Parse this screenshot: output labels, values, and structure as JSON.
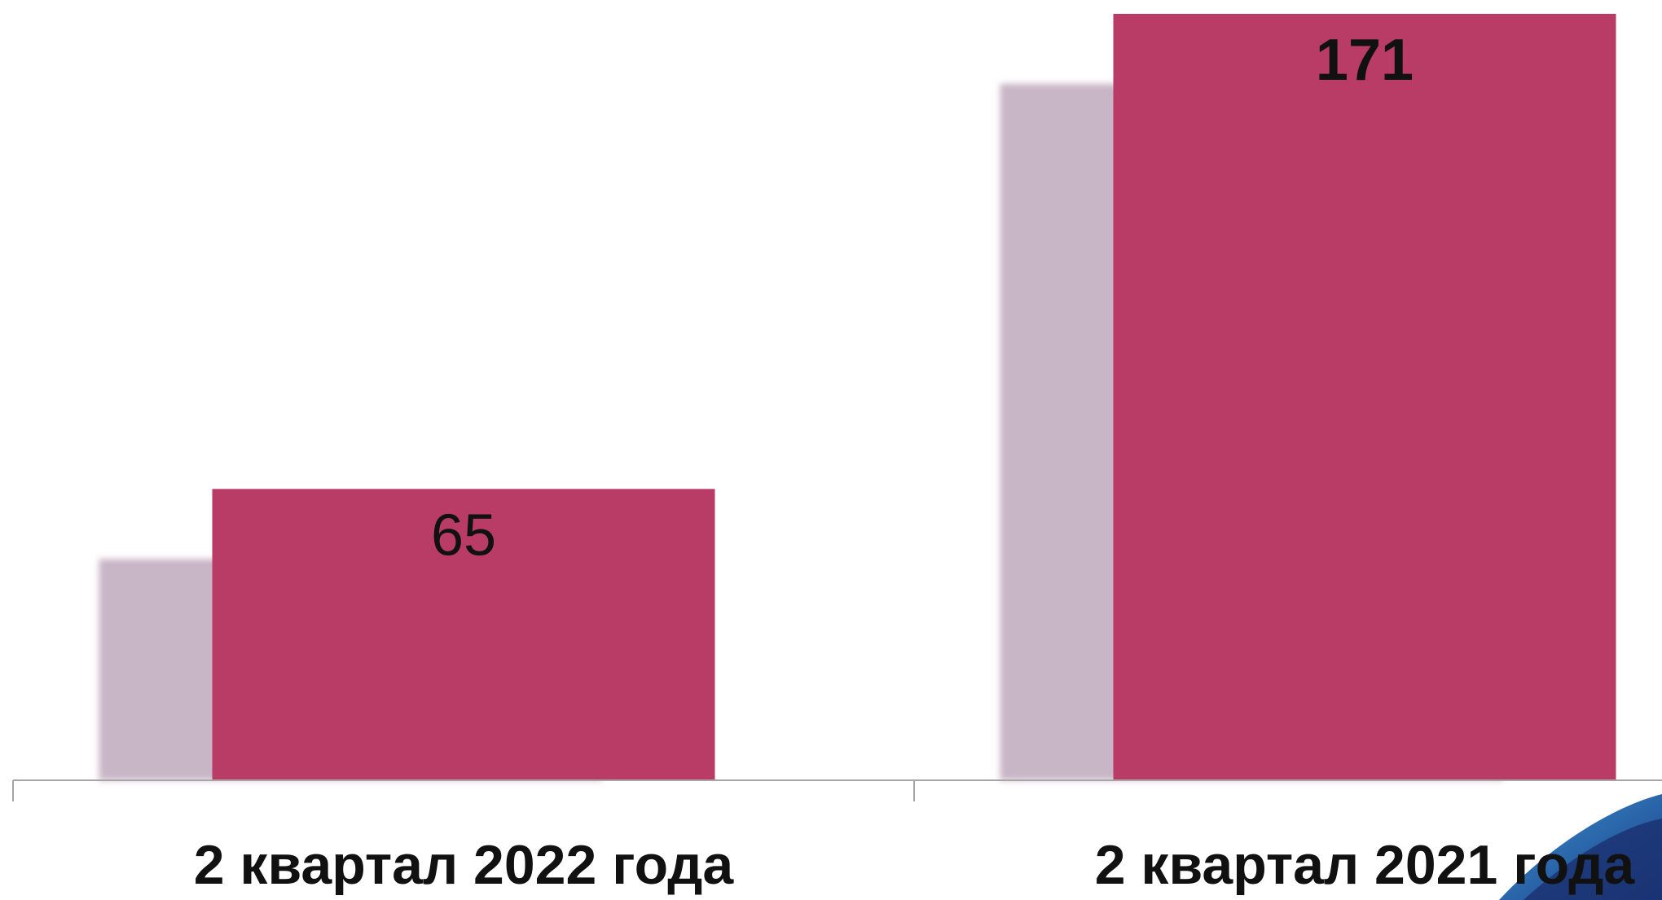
{
  "chart_data": {
    "type": "bar",
    "categories": [
      "2 квартал 2022 года",
      "2 квартал 2021 года"
    ],
    "values": [
      65,
      171
    ],
    "value_label_bold": [
      false,
      true
    ],
    "color": "#b93c67",
    "shadow_color": "#c8b5c5",
    "ylim": [
      0,
      171
    ],
    "grid": false
  }
}
